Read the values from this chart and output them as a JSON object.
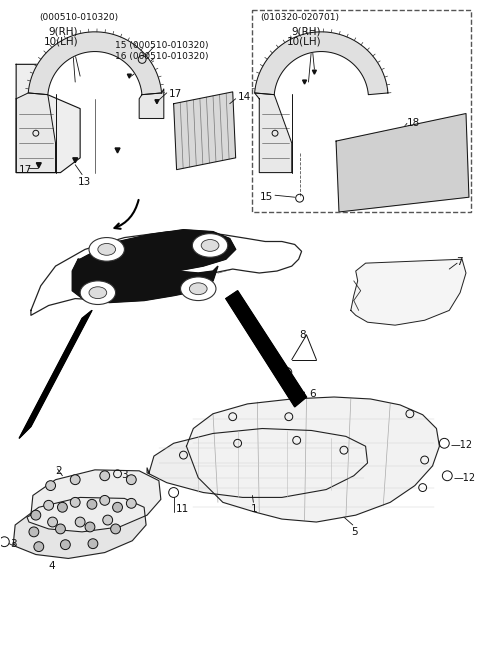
{
  "bg_color": "#ffffff",
  "fig_width": 4.8,
  "fig_height": 6.71,
  "dpi": 100,
  "top_left_date": "(000510-010320)",
  "top_left_9": "9(RH)",
  "top_left_10": "10(LH)",
  "top_left_15": "15 (000510-010320)",
  "top_left_16": "16 (000510-010320)",
  "top_right_date": "(010320-020701)",
  "top_right_9": "9(RH)",
  "top_right_10": "10(LH)"
}
